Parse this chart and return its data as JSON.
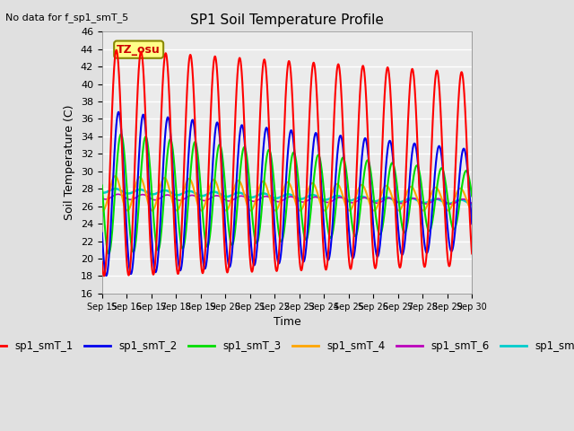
{
  "title": "SP1 Soil Temperature Profile",
  "xlabel": "Time",
  "ylabel": "Soil Temperature (C)",
  "no_data_text": "No data for f_sp1_smT_5",
  "tz_label": "TZ_osu",
  "ylim": [
    16,
    46
  ],
  "yticks": [
    16,
    18,
    20,
    22,
    24,
    26,
    28,
    30,
    32,
    34,
    36,
    38,
    40,
    42,
    44,
    46
  ],
  "xtick_labels": [
    "Sep 15",
    "Sep 16",
    "Sep 17",
    "Sep 18",
    "Sep 19",
    "Sep 20",
    "Sep 21",
    "Sep 22",
    "Sep 23",
    "Sep 24",
    "Sep 25",
    "Sep 26",
    "Sep 27",
    "Sep 28",
    "Sep 29",
    "Sep 30"
  ],
  "series_colors": {
    "sp1_smT_1": "#FF0000",
    "sp1_smT_2": "#0000EE",
    "sp1_smT_3": "#00DD00",
    "sp1_smT_4": "#FFA500",
    "sp1_smT_6": "#BB00BB",
    "sp1_smT_7": "#00CCCC"
  },
  "background_color": "#E0E0E0",
  "plot_bg_color": "#EBEBEB",
  "grid_color": "#FFFFFF"
}
